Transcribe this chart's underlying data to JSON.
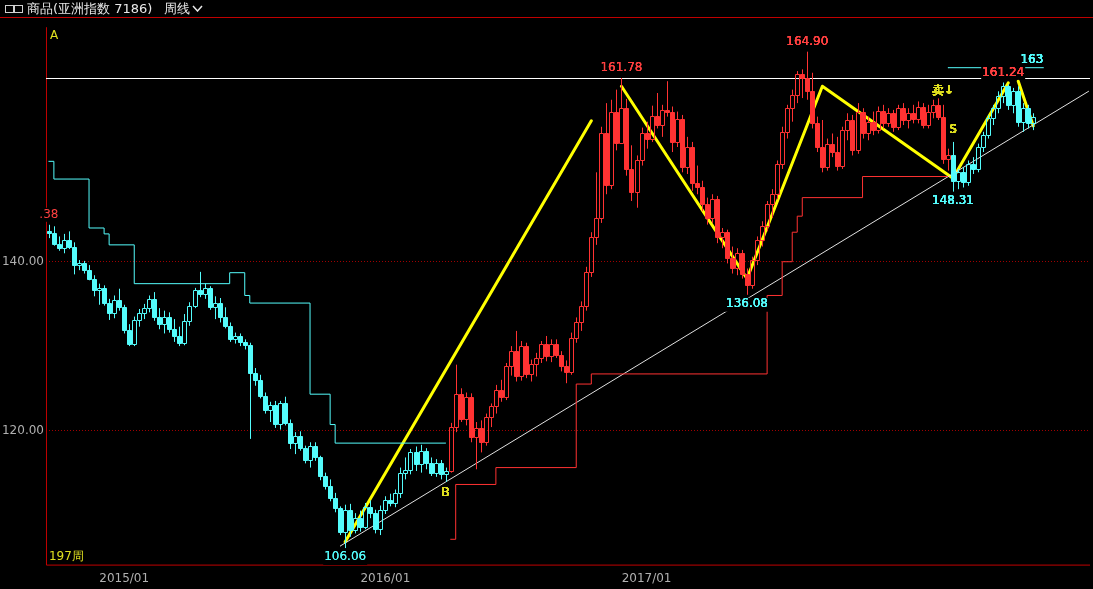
{
  "chart_data": {
    "type": "candlestick",
    "title": "商品(亚洲指数 7186)",
    "subtitle": "周线",
    "xlim": [
      "2014-09-18",
      "2018-09-12"
    ],
    "ylim": [
      104.1,
      167.8
    ],
    "xticks": [
      {
        "value": "2015-01-05",
        "label": "2015/01"
      },
      {
        "value": "2016-01-04",
        "label": "2016/01"
      },
      {
        "value": "2017-01-02",
        "label": "2017/01"
      }
    ],
    "yticks": [
      {
        "value": 120,
        "label": "120.00"
      },
      {
        "value": 140,
        "label": "140.00"
      }
    ],
    "grid": "y",
    "ref_lines": [
      {
        "axis": "y",
        "value": 161.78,
        "color": "#ffffff"
      }
    ],
    "annotations": [
      "A",
      "197周",
      {
        "text": ".38",
        "x": "2014-09-22",
        "y": 144.38
      },
      {
        "text": "106.06",
        "x": "2015-11-09",
        "y": 106.06
      },
      {
        "text": "161.78",
        "x": "2016-11-28",
        "y": 161.78
      },
      {
        "text": "136.08",
        "x": "2017-05-22",
        "y": 136.08
      },
      {
        "text": "164.90",
        "x": "2017-08-14",
        "y": 164.9
      },
      {
        "text": "148.31",
        "x": "2018-03-05",
        "y": 148.31
      },
      {
        "text": "161.24",
        "x": "2018-05-14",
        "y": 161.24
      },
      {
        "text": "163",
        "x": "2018-07-09",
        "y": 163
      },
      {
        "text": "B",
        "x": "2016-03-28",
        "y": 112.6
      },
      {
        "text": "S",
        "x": "2018-03-05",
        "y": 155.6
      },
      {
        "text": "卖↓",
        "x": "2018-02-19",
        "y": 160.2
      }
    ],
    "series": [
      {
        "type": "step",
        "color": "#54fcfc",
        "x": [
          "2014-09-22",
          "2014-09-29",
          "2014-11-17",
          "2014-12-08",
          "2014-12-15",
          "2015-01-19",
          "2015-06-01",
          "2015-06-22",
          "2015-06-29",
          "2015-09-21",
          "2015-10-19",
          "2015-10-26",
          "2016-03-28"
        ],
        "values": [
          151.9,
          149.8,
          144.0,
          143.3,
          142.0,
          137.4,
          138.7,
          136.0,
          135.1,
          124.3,
          120.7,
          118.5,
          118.5
        ]
      },
      {
        "type": "step",
        "color": "#ff3232",
        "x": [
          "2016-04-04",
          "2016-04-11",
          "2016-06-06",
          "2016-09-26",
          "2016-10-17",
          "2017-06-19",
          "2017-07-10",
          "2017-07-24",
          "2017-07-31",
          "2017-08-07",
          "2017-10-30",
          "2018-02-26"
        ],
        "values": [
          107.1,
          113.6,
          115.6,
          125.5,
          126.7,
          136.0,
          140.0,
          143.5,
          145.4,
          147.6,
          150.1,
          150.1
        ]
      },
      {
        "type": "line",
        "color": "#e0e0e0",
        "x": [
          "2015-11-02",
          "2018-09-10"
        ],
        "values": [
          106.3,
          160.2
        ]
      },
      {
        "type": "line",
        "color": "#54fcfc",
        "x": [
          "2018-02-26",
          "2018-07-09"
        ],
        "values": [
          163,
          163
        ]
      },
      {
        "type": "line",
        "color": "#ffff00",
        "x": [
          "2015-11-09",
          "2016-10-17",
          "2016-10-24",
          "2016-11-28",
          "2017-05-22",
          "2017-09-04",
          "2018-03-05",
          "2018-05-21",
          "2018-05-28",
          "2018-06-04",
          "2018-06-25"
        ],
        "values": [
          106.8,
          156.7,
          null,
          160.8,
          138.0,
          160.8,
          149.9,
          161.2,
          null,
          161.4,
          156.1
        ]
      },
      {
        "type": "candlestick",
        "color": "#54fcfc",
        "x": [
          "2014-09-22",
          "2014-09-29",
          "2014-10-06",
          "2014-10-13",
          "2014-10-20",
          "2014-10-27",
          "2014-11-03",
          "2014-11-10",
          "2014-11-17",
          "2014-11-24",
          "2014-12-01",
          "2014-12-08",
          "2014-12-15",
          "2014-12-22",
          "2014-12-29",
          "2015-01-05",
          "2015-01-12",
          "2015-01-19",
          "2015-01-26",
          "2015-02-02",
          "2015-02-09",
          "2015-02-16",
          "2015-02-23",
          "2015-03-02",
          "2015-03-09",
          "2015-03-16",
          "2015-03-23",
          "2015-03-30",
          "2015-04-06",
          "2015-04-13",
          "2015-04-20",
          "2015-04-27",
          "2015-05-04",
          "2015-05-11",
          "2015-05-18",
          "2015-05-25",
          "2015-06-01",
          "2015-06-08",
          "2015-06-15",
          "2015-06-22",
          "2015-06-29",
          "2015-07-06",
          "2015-07-13",
          "2015-07-20",
          "2015-07-27",
          "2015-08-03",
          "2015-08-10",
          "2015-08-17",
          "2015-08-24",
          "2015-08-31",
          "2015-09-07",
          "2015-09-14",
          "2015-09-21",
          "2015-09-28",
          "2015-10-05",
          "2015-10-12",
          "2015-10-19",
          "2015-10-26",
          "2015-11-02",
          "2015-11-09",
          "2015-11-16",
          "2015-11-23",
          "2015-11-30",
          "2015-12-07",
          "2015-12-14",
          "2015-12-21",
          "2015-12-28",
          "2016-01-04",
          "2016-01-11",
          "2016-01-18",
          "2016-01-25",
          "2016-02-01",
          "2016-02-08",
          "2016-02-15",
          "2016-02-22",
          "2016-02-29",
          "2016-03-07",
          "2016-03-14",
          "2016-03-21",
          "2016-03-28"
        ],
        "ohlc": [
          [
            143.6,
            144.38,
            142.8,
            143.4
          ],
          [
            143.4,
            144.2,
            141.9,
            142.1
          ],
          [
            142.1,
            143.0,
            141.3,
            141.6
          ],
          [
            141.6,
            143.3,
            141.0,
            142.6
          ],
          [
            142.6,
            143.6,
            141.5,
            141.8
          ],
          [
            141.8,
            142.3,
            138.5,
            139.6
          ],
          [
            139.6,
            140.2,
            139.0,
            139.8
          ],
          [
            139.8,
            140.1,
            138.6,
            139.0
          ],
          [
            139.0,
            139.6,
            137.8,
            138.0
          ],
          [
            138.0,
            138.4,
            135.9,
            136.6
          ],
          [
            136.6,
            137.4,
            134.9,
            136.9
          ],
          [
            136.9,
            137.2,
            134.8,
            135.1
          ],
          [
            135.1,
            135.6,
            133.1,
            133.9
          ],
          [
            133.9,
            136.0,
            133.3,
            135.5
          ],
          [
            135.5,
            136.8,
            134.2,
            134.6
          ],
          [
            134.6,
            134.9,
            131.5,
            131.9
          ],
          [
            131.9,
            132.6,
            130.0,
            130.2
          ],
          [
            130.2,
            133.5,
            130.0,
            133.1
          ],
          [
            133.1,
            134.4,
            132.3,
            133.9
          ],
          [
            133.9,
            135.0,
            133.2,
            134.5
          ],
          [
            134.5,
            136.0,
            134.0,
            135.6
          ],
          [
            135.6,
            136.4,
            133.0,
            133.4
          ],
          [
            133.4,
            134.5,
            132.0,
            132.6
          ],
          [
            132.6,
            134.2,
            131.5,
            133.4
          ],
          [
            133.4,
            134.0,
            131.6,
            132.0
          ],
          [
            132.0,
            133.2,
            130.5,
            131.2
          ],
          [
            131.2,
            132.3,
            130.0,
            130.4
          ],
          [
            130.4,
            133.8,
            130.1,
            133.0
          ],
          [
            133.0,
            135.2,
            132.4,
            134.8
          ],
          [
            134.8,
            136.9,
            134.5,
            136.6
          ],
          [
            136.6,
            138.8,
            135.8,
            136.2
          ],
          [
            136.2,
            137.4,
            135.6,
            136.9
          ],
          [
            136.9,
            137.1,
            134.3,
            134.6
          ],
          [
            134.6,
            135.9,
            133.2,
            135.1
          ],
          [
            135.1,
            135.7,
            132.8,
            133.5
          ],
          [
            133.5,
            134.6,
            132.1,
            132.4
          ],
          [
            132.4,
            132.8,
            130.5,
            130.9
          ],
          [
            130.9,
            131.6,
            130.3,
            131.2
          ],
          [
            131.2,
            131.5,
            130.0,
            130.5
          ],
          [
            130.5,
            130.8,
            129.6,
            130.1
          ],
          [
            130.1,
            130.4,
            119.0,
            126.8
          ],
          [
            126.8,
            127.4,
            125.3,
            126.0
          ],
          [
            126.0,
            126.6,
            123.8,
            124.1
          ],
          [
            124.1,
            124.5,
            122.0,
            122.4
          ],
          [
            122.4,
            123.4,
            121.0,
            123.0
          ],
          [
            123.0,
            123.5,
            120.3,
            120.8
          ],
          [
            120.8,
            123.5,
            120.1,
            123.2
          ],
          [
            123.2,
            124.0,
            120.6,
            120.9
          ],
          [
            120.9,
            121.3,
            117.8,
            118.5
          ],
          [
            118.5,
            119.8,
            117.2,
            119.4
          ],
          [
            119.4,
            119.9,
            117.6,
            117.9
          ],
          [
            117.9,
            118.2,
            116.1,
            116.5
          ],
          [
            116.5,
            118.6,
            115.6,
            118.2
          ],
          [
            118.2,
            118.6,
            116.4,
            116.8
          ],
          [
            116.8,
            117.0,
            114.1,
            114.6
          ],
          [
            114.6,
            115.0,
            113.0,
            113.4
          ],
          [
            113.4,
            114.2,
            111.6,
            112.0
          ],
          [
            112.0,
            112.6,
            110.3,
            110.8
          ],
          [
            110.8,
            111.0,
            107.6,
            108.0
          ],
          [
            108.0,
            111.2,
            106.06,
            110.6
          ],
          [
            110.6,
            111.3,
            107.4,
            108.2
          ],
          [
            108.2,
            110.2,
            107.8,
            109.6
          ],
          [
            109.6,
            110.5,
            108.0,
            108.6
          ],
          [
            108.6,
            111.4,
            108.3,
            110.9
          ],
          [
            110.9,
            111.7,
            109.6,
            110.2
          ],
          [
            110.2,
            110.6,
            107.8,
            108.3
          ],
          [
            108.3,
            111.1,
            107.6,
            110.6
          ],
          [
            110.6,
            112.2,
            110.1,
            111.8
          ],
          [
            111.8,
            112.5,
            111.0,
            111.4
          ],
          [
            111.4,
            113.0,
            110.9,
            112.6
          ],
          [
            112.6,
            115.6,
            112.0,
            115.0
          ],
          [
            115.0,
            116.8,
            114.2,
            115.3
          ],
          [
            115.3,
            117.8,
            114.8,
            117.4
          ],
          [
            117.4,
            118.1,
            115.2,
            116.0
          ],
          [
            116.0,
            118.3,
            115.0,
            117.6
          ],
          [
            117.6,
            117.9,
            115.4,
            116.2
          ],
          [
            116.2,
            116.8,
            114.6,
            115.0
          ],
          [
            115.0,
            116.6,
            114.5,
            116.2
          ],
          [
            116.2,
            116.5,
            114.2,
            114.8
          ],
          [
            114.8,
            115.6,
            113.9,
            115.2
          ]
        ]
      },
      {
        "type": "candlestick",
        "color": "#ff3232",
        "x": [
          "2016-04-04",
          "2016-04-11",
          "2016-04-18",
          "2016-04-25",
          "2016-05-02",
          "2016-05-09",
          "2016-05-16",
          "2016-05-23",
          "2016-05-30",
          "2016-06-06",
          "2016-06-13",
          "2016-06-20",
          "2016-06-27",
          "2016-07-04",
          "2016-07-11",
          "2016-07-18",
          "2016-07-25",
          "2016-08-01",
          "2016-08-08",
          "2016-08-15",
          "2016-08-22",
          "2016-08-29",
          "2016-09-05",
          "2016-09-12",
          "2016-09-19",
          "2016-09-26",
          "2016-10-03",
          "2016-10-10",
          "2016-10-17",
          "2016-10-24",
          "2016-10-31",
          "2016-11-07",
          "2016-11-14",
          "2016-11-21",
          "2016-11-28",
          "2016-12-05",
          "2016-12-12",
          "2016-12-19",
          "2016-12-26",
          "2017-01-02",
          "2017-01-09",
          "2017-01-16",
          "2017-01-23",
          "2017-01-30",
          "2017-02-06",
          "2017-02-13",
          "2017-02-20",
          "2017-02-27",
          "2017-03-06",
          "2017-03-13",
          "2017-03-20",
          "2017-03-27",
          "2017-04-03",
          "2017-04-10",
          "2017-04-17",
          "2017-04-24",
          "2017-05-01",
          "2017-05-08",
          "2017-05-15",
          "2017-05-22",
          "2017-05-29",
          "2017-06-05",
          "2017-06-12",
          "2017-06-19",
          "2017-06-26",
          "2017-07-03",
          "2017-07-10",
          "2017-07-17",
          "2017-07-24",
          "2017-07-31",
          "2017-08-07",
          "2017-08-14",
          "2017-08-21",
          "2017-08-28",
          "2017-09-04",
          "2017-09-11",
          "2017-09-18",
          "2017-09-25",
          "2017-10-02",
          "2017-10-09",
          "2017-10-16",
          "2017-10-23",
          "2017-10-30",
          "2017-11-06",
          "2017-11-13",
          "2017-11-20",
          "2017-11-27",
          "2017-12-04",
          "2017-12-11",
          "2017-12-18",
          "2017-12-25",
          "2018-01-01",
          "2018-01-08",
          "2018-01-15",
          "2018-01-22",
          "2018-01-29",
          "2018-02-05",
          "2018-02-12",
          "2018-02-19",
          "2018-02-26"
        ],
        "ohlc": [
          [
            115.2,
            120.9,
            115.0,
            120.4
          ],
          [
            120.4,
            127.8,
            119.8,
            124.3
          ],
          [
            124.3,
            125.0,
            121.0,
            121.4
          ],
          [
            121.4,
            124.5,
            120.6,
            124.0
          ],
          [
            124.0,
            124.4,
            118.6,
            119.2
          ],
          [
            119.2,
            121.0,
            115.4,
            120.3
          ],
          [
            120.3,
            121.2,
            117.4,
            118.6
          ],
          [
            118.6,
            122.0,
            118.2,
            121.6
          ],
          [
            121.6,
            123.2,
            120.4,
            122.9
          ],
          [
            122.9,
            125.4,
            122.0,
            124.8
          ],
          [
            124.8,
            126.0,
            123.4,
            124.0
          ],
          [
            124.0,
            128.0,
            123.6,
            127.6
          ],
          [
            127.6,
            130.0,
            126.5,
            129.4
          ],
          [
            129.4,
            131.8,
            125.8,
            126.4
          ],
          [
            126.4,
            130.6,
            125.9,
            130.0
          ],
          [
            130.0,
            130.4,
            126.2,
            126.7
          ],
          [
            126.7,
            128.4,
            125.8,
            127.9
          ],
          [
            127.9,
            129.2,
            126.4,
            128.6
          ],
          [
            128.6,
            130.6,
            128.0,
            130.2
          ],
          [
            130.2,
            131.2,
            128.2,
            128.8
          ],
          [
            128.8,
            130.8,
            128.1,
            130.3
          ],
          [
            130.3,
            130.8,
            128.6,
            129.0
          ],
          [
            129.0,
            129.4,
            127.0,
            127.6
          ],
          [
            127.6,
            128.3,
            125.6,
            126.9
          ],
          [
            126.9,
            131.6,
            126.6,
            131.0
          ],
          [
            131.0,
            133.4,
            130.4,
            132.8
          ],
          [
            132.8,
            135.3,
            131.8,
            134.7
          ],
          [
            134.7,
            139.4,
            134.2,
            138.8
          ],
          [
            138.8,
            143.5,
            138.2,
            142.9
          ],
          [
            142.9,
            150.6,
            142.0,
            145.2
          ],
          [
            145.2,
            156.0,
            144.6,
            155.3
          ],
          [
            155.3,
            158.8,
            148.0,
            149.1
          ],
          [
            149.1,
            159.2,
            148.6,
            157.8
          ],
          [
            157.8,
            160.4,
            153.2,
            154.1
          ],
          [
            154.1,
            161.78,
            154.0,
            158.2
          ],
          [
            158.2,
            159.3,
            150.2,
            151.0
          ],
          [
            151.0,
            153.8,
            147.2,
            148.3
          ],
          [
            148.3,
            152.6,
            146.4,
            152.0
          ],
          [
            152.0,
            155.9,
            151.4,
            155.2
          ],
          [
            155.2,
            156.6,
            153.4,
            154.6
          ],
          [
            154.6,
            158.5,
            154.2,
            157.3
          ],
          [
            157.3,
            160.0,
            155.8,
            156.2
          ],
          [
            156.2,
            158.6,
            154.8,
            158.0
          ],
          [
            158.0,
            161.4,
            157.2,
            157.8
          ],
          [
            157.8,
            158.4,
            153.0,
            154.2
          ],
          [
            154.2,
            157.8,
            153.6,
            156.9
          ],
          [
            156.9,
            157.4,
            150.6,
            151.2
          ],
          [
            151.2,
            154.8,
            150.4,
            153.6
          ],
          [
            153.6,
            154.2,
            148.4,
            149.3
          ],
          [
            149.3,
            151.4,
            148.0,
            148.8
          ],
          [
            148.8,
            149.6,
            146.0,
            146.9
          ],
          [
            146.9,
            147.6,
            144.4,
            145.2
          ],
          [
            145.2,
            148.0,
            144.6,
            147.4
          ],
          [
            147.4,
            147.8,
            142.2,
            142.9
          ],
          [
            142.9,
            144.0,
            141.6,
            143.5
          ],
          [
            143.5,
            143.8,
            139.8,
            140.4
          ],
          [
            140.4,
            141.8,
            138.6,
            139.2
          ],
          [
            139.2,
            141.6,
            138.4,
            141.0
          ],
          [
            141.0,
            141.4,
            138.0,
            138.6
          ],
          [
            138.6,
            139.2,
            136.08,
            137.2
          ],
          [
            137.2,
            140.6,
            136.8,
            140.2
          ],
          [
            140.2,
            143.0,
            139.6,
            142.6
          ],
          [
            142.6,
            144.8,
            141.8,
            144.2
          ],
          [
            144.2,
            147.2,
            143.6,
            146.8
          ],
          [
            146.8,
            148.6,
            145.2,
            148.0
          ],
          [
            148.0,
            152.0,
            147.4,
            151.6
          ],
          [
            151.6,
            156.0,
            151.0,
            155.4
          ],
          [
            155.4,
            158.6,
            154.6,
            158.2
          ],
          [
            158.2,
            160.4,
            156.6,
            159.8
          ],
          [
            159.8,
            162.6,
            158.8,
            162.2
          ],
          [
            162.2,
            162.8,
            159.4,
            161.8
          ],
          [
            161.8,
            164.9,
            159.2,
            160.2
          ],
          [
            160.2,
            162.4,
            155.8,
            156.4
          ],
          [
            156.4,
            157.2,
            153.0,
            153.6
          ],
          [
            153.6,
            156.8,
            150.6,
            151.2
          ],
          [
            151.2,
            154.6,
            150.8,
            154.0
          ],
          [
            154.0,
            155.2,
            152.4,
            153.0
          ],
          [
            153.0,
            154.8,
            150.8,
            151.4
          ],
          [
            151.4,
            156.0,
            151.0,
            155.6
          ],
          [
            155.6,
            157.6,
            154.4,
            156.8
          ],
          [
            156.8,
            157.4,
            152.6,
            153.2
          ],
          [
            153.2,
            158.8,
            152.8,
            157.8
          ],
          [
            157.8,
            158.2,
            154.6,
            155.2
          ],
          [
            155.2,
            157.2,
            154.4,
            156.6
          ],
          [
            156.6,
            157.8,
            155.0,
            155.6
          ],
          [
            155.6,
            158.4,
            155.2,
            157.9
          ],
          [
            157.9,
            158.6,
            155.8,
            156.4
          ],
          [
            156.4,
            158.2,
            156.0,
            157.6
          ],
          [
            157.6,
            158.0,
            155.4,
            156.0
          ],
          [
            156.0,
            158.6,
            155.6,
            158.2
          ],
          [
            158.2,
            158.8,
            156.2,
            156.8
          ],
          [
            156.8,
            158.2,
            155.8,
            157.6
          ],
          [
            157.6,
            158.6,
            156.4,
            156.9
          ],
          [
            156.9,
            159.0,
            156.4,
            158.4
          ],
          [
            158.4,
            158.8,
            155.8,
            156.2
          ],
          [
            156.2,
            158.6,
            155.8,
            157.8
          ],
          [
            157.8,
            159.2,
            157.0,
            158.6
          ],
          [
            158.6,
            159.4,
            156.8,
            157.2
          ],
          [
            157.2,
            158.6,
            151.6,
            152.2
          ],
          [
            152.2,
            153.4,
            150.8,
            152.6
          ]
        ]
      },
      {
        "type": "candlestick",
        "color": "#54fcfc",
        "x": [
          "2018-03-05",
          "2018-03-12",
          "2018-03-19",
          "2018-03-26",
          "2018-04-02",
          "2018-04-09",
          "2018-04-16",
          "2018-04-23",
          "2018-04-30",
          "2018-05-07",
          "2018-05-14",
          "2018-05-21",
          "2018-05-28",
          "2018-06-04",
          "2018-06-11",
          "2018-06-18",
          "2018-06-25"
        ],
        "ohlc": [
          [
            152.6,
            154.2,
            148.31,
            149.6
          ],
          [
            149.6,
            151.0,
            148.6,
            150.6
          ],
          [
            150.6,
            151.2,
            148.8,
            149.4
          ],
          [
            149.4,
            152.0,
            149.0,
            151.6
          ],
          [
            151.6,
            152.4,
            150.4,
            151.0
          ],
          [
            151.0,
            154.0,
            150.6,
            153.6
          ],
          [
            153.6,
            155.4,
            153.0,
            155.0
          ],
          [
            155.0,
            157.4,
            154.6,
            157.0
          ],
          [
            157.0,
            158.6,
            156.2,
            158.2
          ],
          [
            158.2,
            160.2,
            157.6,
            159.6
          ],
          [
            159.6,
            161.24,
            158.8,
            160.8
          ],
          [
            160.8,
            161.0,
            158.0,
            158.6
          ],
          [
            158.6,
            160.6,
            157.6,
            160.2
          ],
          [
            160.2,
            160.8,
            156.0,
            156.6
          ],
          [
            156.6,
            158.8,
            155.4,
            158.2
          ],
          [
            158.2,
            158.6,
            155.8,
            156.4
          ],
          [
            156.4,
            157.6,
            155.6,
            157.2
          ]
        ]
      }
    ]
  }
}
